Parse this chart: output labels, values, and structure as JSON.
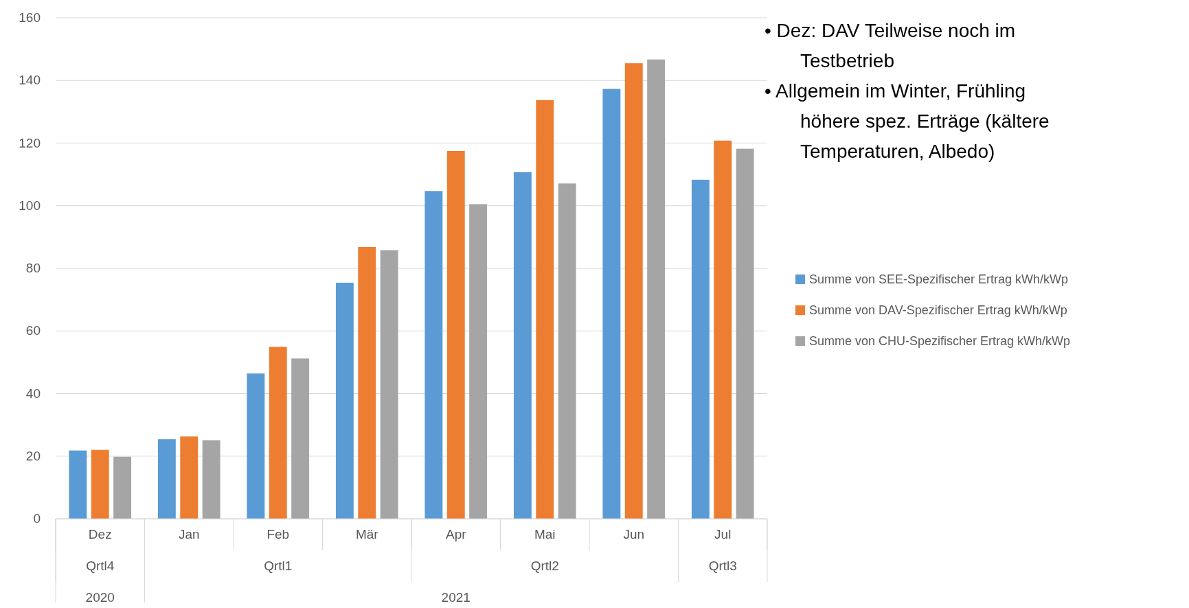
{
  "chart_data": {
    "type": "bar",
    "categories": [
      "Dez",
      "Jan",
      "Feb",
      "Mär",
      "Apr",
      "Mai",
      "Jun",
      "Jul"
    ],
    "series": [
      {
        "name": "Summe von SEE-Spezifischer Ertrag kWh/kWp",
        "color": "#5b9bd5",
        "values": [
          21.8,
          25.4,
          46.4,
          75.4,
          104.7,
          110.7,
          137.3,
          108.3
        ]
      },
      {
        "name": "Summe von DAV-Spezifischer Ertrag kWh/kWp",
        "color": "#ed7d31",
        "values": [
          22,
          26.3,
          54.9,
          86.8,
          117.5,
          133.7,
          145.5,
          120.8
        ]
      },
      {
        "name": "Summe von CHU-Spezifischer Ertrag kWh/kWp",
        "color": "#a5a5a5",
        "values": [
          19.8,
          25.1,
          51.2,
          85.8,
          100.5,
          107.1,
          146.7,
          118.2
        ]
      }
    ],
    "ylim": [
      0,
      160
    ],
    "yticks": [
      0,
      20,
      40,
      60,
      80,
      100,
      120,
      140,
      160
    ],
    "grid": "y",
    "legend": "right",
    "annotations": [
      "Qrtl4",
      "Qrtl1",
      "Qrtl2",
      "Qrtl3",
      "2020",
      "2021",
      "• Dez: DAV Teilweise noch im Testbetrieb",
      "• Allgemein im Winter, Frühling höhere spez. Erträge (kältere Temperaturen, Albedo)"
    ]
  }
}
